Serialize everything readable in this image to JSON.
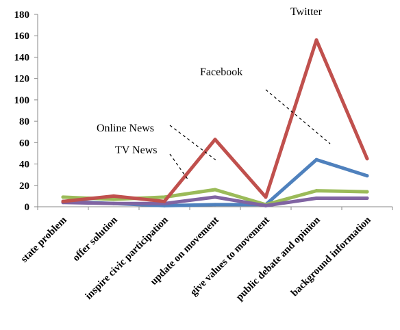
{
  "chart_data": {
    "type": "line",
    "title": "",
    "xlabel": "",
    "ylabel": "",
    "ylim": [
      0,
      180
    ],
    "y_ticks": [
      0,
      20,
      40,
      60,
      80,
      100,
      120,
      140,
      160,
      180
    ],
    "grid": false,
    "legend": "none",
    "categories": [
      "state problem",
      "offer solution",
      "inspire civic participation",
      "update on movement",
      "give values to movement",
      "public debate and opinion",
      "background information"
    ],
    "series": [
      {
        "name": "Twitter",
        "color": "#c0504d",
        "values": [
          5,
          10,
          5,
          63,
          9,
          156,
          45
        ]
      },
      {
        "name": "Facebook",
        "color": "#4f81bd",
        "values": [
          5,
          3,
          1,
          2,
          2,
          44,
          29
        ]
      },
      {
        "name": "Online News",
        "color": "#9bbb59",
        "values": [
          9,
          7,
          9,
          16,
          2,
          15,
          14
        ]
      },
      {
        "name": "TV News",
        "color": "#8064a2",
        "values": [
          4,
          3,
          3,
          9,
          1,
          8,
          8
        ]
      }
    ],
    "annotations": [
      {
        "text": "Twitter"
      },
      {
        "text": "Facebook"
      },
      {
        "text": "Online News"
      },
      {
        "text": "TV News"
      }
    ]
  }
}
